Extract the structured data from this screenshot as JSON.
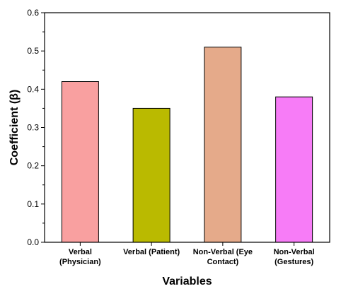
{
  "chart_data": {
    "type": "bar",
    "categories": [
      [
        "Verbal",
        "(Physician)"
      ],
      [
        "Verbal (Patient)"
      ],
      [
        "Non-Verbal (Eye",
        "Contact)"
      ],
      [
        "Non-Verbal",
        "(Gestures)"
      ]
    ],
    "values": [
      0.42,
      0.35,
      0.51,
      0.38
    ],
    "colors": [
      "#F9A0A0",
      "#BABA00",
      "#E5AA8A",
      "#F77CF7"
    ],
    "xlabel": "Variables",
    "ylabel": "Coefficient (β)",
    "ylim": [
      0.0,
      0.6
    ],
    "yticks": [
      "0.0",
      "0.1",
      "0.2",
      "0.3",
      "0.4",
      "0.5",
      "0.6"
    ],
    "grid": false
  }
}
